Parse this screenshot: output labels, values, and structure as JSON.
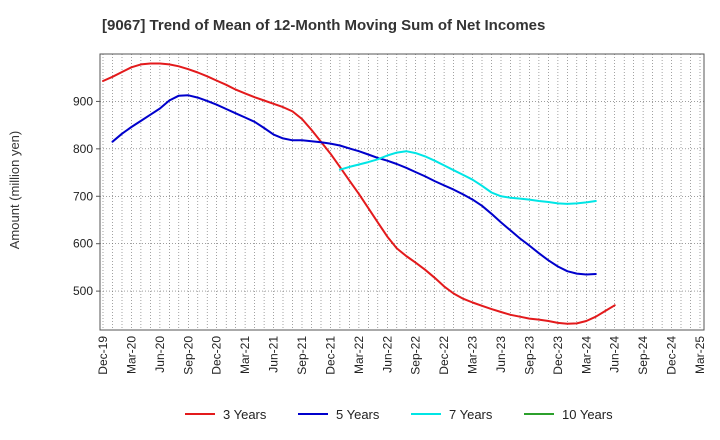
{
  "chart_data": {
    "type": "line",
    "title": "[9067]  Trend of Mean of 12-Month Moving Sum of Net Incomes",
    "xlabel": "",
    "ylabel": "Amount (million yen)",
    "ylim": [
      418,
      1000
    ],
    "yticks": [
      500,
      600,
      700,
      800,
      900
    ],
    "x_tick_labels": [
      "Dec-19",
      "Mar-20",
      "Jun-20",
      "Sep-20",
      "Dec-20",
      "Mar-21",
      "Jun-21",
      "Sep-21",
      "Dec-21",
      "Mar-22",
      "Jun-22",
      "Sep-22",
      "Dec-22",
      "Mar-23",
      "Jun-23",
      "Sep-23",
      "Dec-23",
      "Mar-24",
      "Jun-24",
      "Sep-24",
      "Dec-24",
      "Mar-25"
    ],
    "grid": true,
    "legend_position": "bottom",
    "series": [
      {
        "name": "3 Years",
        "color": "#e31a1c",
        "start_index": 0,
        "values": [
          943,
          952,
          962,
          972,
          978,
          980,
          980,
          978,
          974,
          968,
          961,
          953,
          944,
          935,
          925,
          917,
          909,
          902,
          895,
          888,
          879,
          863,
          840,
          815,
          790,
          762,
          733,
          705,
          675,
          645,
          615,
          590,
          574,
          560,
          545,
          528,
          510,
          495,
          484,
          476,
          469,
          462,
          456,
          450,
          446,
          442,
          440,
          437,
          433,
          431,
          432,
          437,
          446,
          458,
          470
        ]
      },
      {
        "name": "5 Years",
        "color": "#0000cc",
        "start_index": 1,
        "values": [
          815,
          832,
          846,
          859,
          872,
          885,
          902,
          912,
          913,
          908,
          901,
          893,
          884,
          875,
          866,
          857,
          844,
          830,
          822,
          818,
          818,
          816,
          814,
          811,
          807,
          801,
          795,
          788,
          781,
          775,
          768,
          760,
          751,
          742,
          732,
          723,
          714,
          704,
          693,
          680,
          663,
          645,
          628,
          611,
          596,
          580,
          565,
          552,
          542,
          537,
          535,
          536
        ]
      },
      {
        "name": "7 Years",
        "color": "#00e5e5",
        "start_index": 25,
        "values": [
          756,
          762,
          767,
          772,
          778,
          786,
          792,
          795,
          791,
          784,
          775,
          765,
          755,
          745,
          735,
          722,
          708,
          700,
          697,
          695,
          693,
          690,
          688,
          685,
          684,
          685,
          687,
          690
        ]
      },
      {
        "name": "10 Years",
        "color": "#2ca02c",
        "start_index": 0,
        "values": []
      }
    ]
  }
}
